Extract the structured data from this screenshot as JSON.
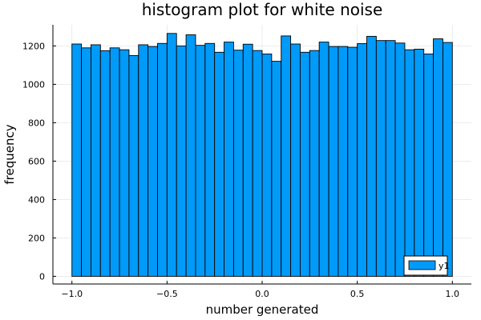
{
  "chart_data": {
    "type": "bar",
    "title": "histogram plot for white noise",
    "xlabel": "number generated",
    "ylabel": "frequency",
    "xlim": [
      -1.1,
      1.1
    ],
    "ylim": [
      -40,
      1310
    ],
    "x_ticks": [
      -1.0,
      -0.5,
      0.0,
      0.5,
      1.0
    ],
    "x_tick_labels": [
      "−1.0",
      "−0.5",
      "0.0",
      "0.5",
      "1.0"
    ],
    "y_ticks": [
      0,
      200,
      400,
      600,
      800,
      1000,
      1200
    ],
    "y_tick_labels": [
      "0",
      "200",
      "400",
      "600",
      "800",
      "1000",
      "1200"
    ],
    "grid": true,
    "legend_position": "bottom-right",
    "bin_edges_start": -1.0,
    "bin_width": 0.05,
    "series": [
      {
        "name": "y1",
        "color": "#009af9",
        "values": [
          1210,
          1190,
          1206,
          1175,
          1190,
          1180,
          1150,
          1206,
          1197,
          1213,
          1265,
          1200,
          1258,
          1203,
          1213,
          1167,
          1220,
          1178,
          1209,
          1176,
          1158,
          1120,
          1252,
          1210,
          1167,
          1176,
          1220,
          1197,
          1197,
          1193,
          1212,
          1250,
          1228,
          1228,
          1215,
          1180,
          1183,
          1158,
          1237,
          1218
        ]
      }
    ]
  }
}
